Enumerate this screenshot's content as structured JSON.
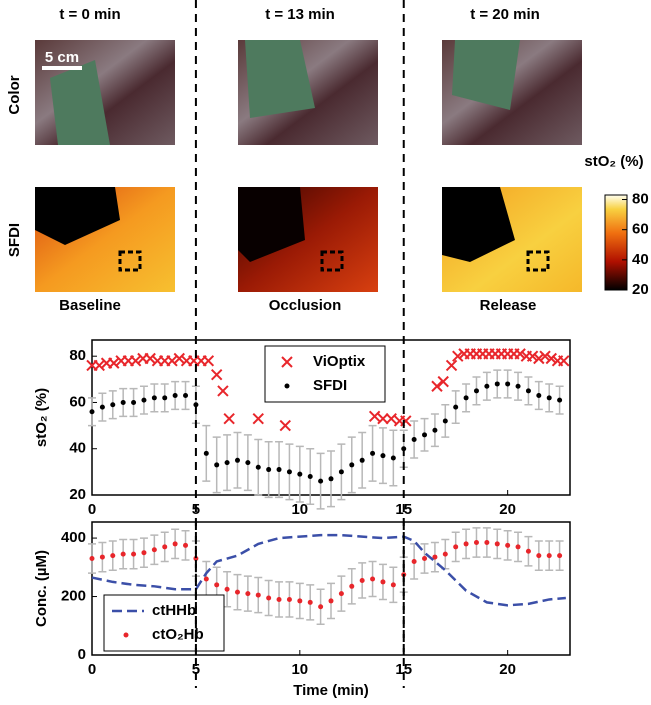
{
  "figure": {
    "time_labels": [
      "t = 0 min",
      "t = 13 min",
      "t = 20 min"
    ],
    "row_labels": [
      "Color",
      "SFDI"
    ],
    "condition_labels": [
      "Baseline",
      "Occlusion",
      "Release"
    ],
    "scale_bar": "5 cm",
    "colorbar": {
      "label": "stO₂ (%)",
      "lim": [
        20,
        83
      ],
      "ticks": [
        20,
        40,
        60,
        80
      ]
    }
  },
  "chart_data": [
    {
      "type": "scatter",
      "ylabel": "stO₂ (%)",
      "xlim": [
        0,
        23
      ],
      "xticks": [
        0,
        5,
        10,
        15,
        20
      ],
      "ylim": [
        20,
        87
      ],
      "yticks": [
        20,
        40,
        60,
        80
      ],
      "vlines": [
        5,
        15
      ],
      "legend": "upper center",
      "series": [
        {
          "name": "ViOptix",
          "color": "#e8262b",
          "style": "x",
          "x": [
            0,
            0.35,
            0.7,
            1.05,
            1.4,
            1.75,
            2.1,
            2.45,
            2.8,
            3.15,
            3.5,
            3.85,
            4.2,
            4.55,
            4.9,
            5.25,
            5.6,
            6.0,
            6.3,
            6.6,
            8.0,
            9.3,
            13.6,
            14.0,
            14.4,
            14.8,
            15.1,
            16.6,
            16.9,
            17.3,
            17.6,
            17.9,
            18.2,
            18.5,
            18.8,
            19.1,
            19.4,
            19.7,
            20.0,
            20.3,
            20.6,
            20.9,
            21.2,
            21.5,
            21.8,
            22.1,
            22.4,
            22.7
          ],
          "values": [
            76,
            76,
            77,
            77,
            78,
            78,
            78,
            79,
            79,
            78,
            78,
            78,
            79,
            78,
            78,
            78,
            78,
            72,
            65,
            53,
            53,
            50,
            54,
            53,
            53,
            52,
            52,
            67,
            69,
            76,
            80,
            81,
            81,
            81,
            81,
            81,
            81,
            81,
            81,
            81,
            81,
            80,
            80,
            79,
            80,
            79,
            78,
            78
          ]
        },
        {
          "name": "SFDI",
          "color": "#000000",
          "style": "dot",
          "error_color": "#b8b8b8",
          "x": [
            0,
            0.5,
            1,
            1.5,
            2,
            2.5,
            3,
            3.5,
            4,
            4.5,
            5,
            5.5,
            6,
            6.5,
            7,
            7.5,
            8,
            8.5,
            9,
            9.5,
            10,
            10.5,
            11,
            11.5,
            12,
            12.5,
            13,
            13.5,
            14,
            14.5,
            15,
            15.5,
            16,
            16.5,
            17,
            17.5,
            18,
            18.5,
            19,
            19.5,
            20,
            20.5,
            21,
            21.5,
            22,
            22.5
          ],
          "values": [
            56,
            58,
            59,
            60,
            60,
            61,
            62,
            62,
            63,
            63,
            59,
            38,
            33,
            34,
            35,
            34,
            32,
            31,
            31,
            30,
            29,
            28,
            26,
            27,
            30,
            33,
            35,
            38,
            37,
            36,
            40,
            44,
            46,
            48,
            52,
            58,
            62,
            65,
            67,
            68,
            68,
            67,
            65,
            63,
            62,
            61
          ],
          "errors": [
            6,
            6,
            6,
            6,
            6,
            6,
            6,
            6,
            6,
            6,
            8,
            12,
            12,
            12,
            12,
            12,
            12,
            12,
            12,
            12,
            12,
            12,
            12,
            12,
            12,
            12,
            12,
            12,
            12,
            12,
            8,
            8,
            7,
            7,
            7,
            7,
            6,
            6,
            6,
            6,
            6,
            6,
            6,
            6,
            6,
            6
          ]
        }
      ]
    },
    {
      "type": "scatter",
      "xlabel": "Time (min)",
      "ylabel": "Conc. (µM)",
      "xlim": [
        0,
        23
      ],
      "xticks": [
        0,
        5,
        10,
        15,
        20
      ],
      "ylim": [
        0,
        455
      ],
      "yticks": [
        0,
        200,
        400
      ],
      "vlines": [
        5,
        15
      ],
      "legend": "lower left",
      "series": [
        {
          "name": "ctHHb",
          "color": "#3b4fa8",
          "style": "dashed",
          "x": [
            0,
            1,
            2,
            3,
            4,
            5,
            5.5,
            6,
            7,
            8,
            9,
            10,
            11,
            12,
            13,
            14,
            15,
            15.5,
            16,
            17,
            18,
            19,
            20,
            21,
            22,
            22.8
          ],
          "values": [
            265,
            250,
            240,
            235,
            225,
            225,
            280,
            320,
            340,
            380,
            400,
            405,
            410,
            410,
            405,
            400,
            405,
            390,
            350,
            290,
            220,
            180,
            170,
            175,
            190,
            195
          ]
        },
        {
          "name": "ctO₂Hb",
          "color": "#e8262b",
          "style": "dot",
          "error_color": "#b8b8b8",
          "x": [
            0,
            0.5,
            1,
            1.5,
            2,
            2.5,
            3,
            3.5,
            4,
            4.5,
            5,
            5.5,
            6,
            6.5,
            7,
            7.5,
            8,
            8.5,
            9,
            9.5,
            10,
            10.5,
            11,
            11.5,
            12,
            12.5,
            13,
            13.5,
            14,
            14.5,
            15,
            15.5,
            16,
            16.5,
            17,
            17.5,
            18,
            18.5,
            19,
            19.5,
            20,
            20.5,
            21,
            21.5,
            22,
            22.5
          ],
          "values": [
            330,
            335,
            340,
            345,
            345,
            350,
            360,
            370,
            380,
            375,
            330,
            260,
            240,
            225,
            215,
            210,
            205,
            195,
            190,
            190,
            185,
            180,
            165,
            185,
            210,
            235,
            255,
            260,
            250,
            240,
            275,
            320,
            330,
            335,
            345,
            370,
            380,
            385,
            385,
            380,
            375,
            370,
            355,
            340,
            340,
            340
          ],
          "errors": [
            50,
            50,
            50,
            50,
            50,
            50,
            50,
            50,
            50,
            50,
            60,
            60,
            60,
            60,
            60,
            60,
            60,
            60,
            60,
            60,
            60,
            60,
            60,
            60,
            60,
            60,
            60,
            60,
            60,
            60,
            60,
            60,
            50,
            50,
            50,
            50,
            50,
            50,
            50,
            50,
            50,
            50,
            50,
            50,
            50,
            50
          ]
        }
      ]
    }
  ]
}
